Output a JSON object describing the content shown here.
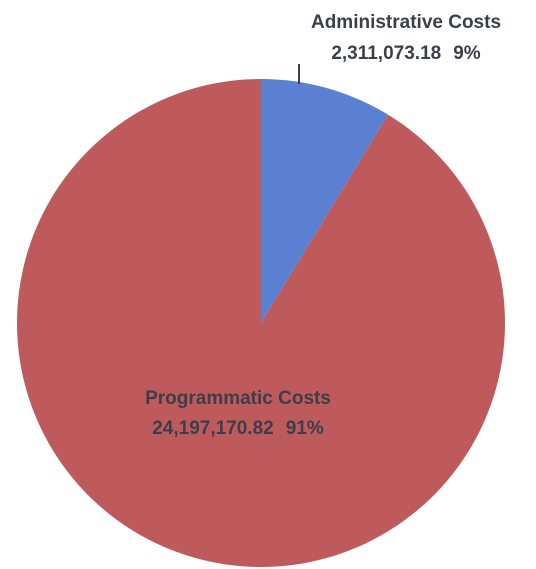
{
  "chart_data": {
    "type": "pie",
    "slices": [
      {
        "name": "Administrative Costs",
        "value": 2311073.18,
        "value_label": "2,311,073.18",
        "percent": 9,
        "percent_label": "9%",
        "color": "#5b7fd1"
      },
      {
        "name": "Programmatic Costs",
        "value": 24197170.82,
        "value_label": "24,197,170.82",
        "percent": 91,
        "percent_label": "91%",
        "color": "#bf5a5c"
      }
    ],
    "start_angle": "12 o'clock",
    "direction": "clockwise"
  }
}
